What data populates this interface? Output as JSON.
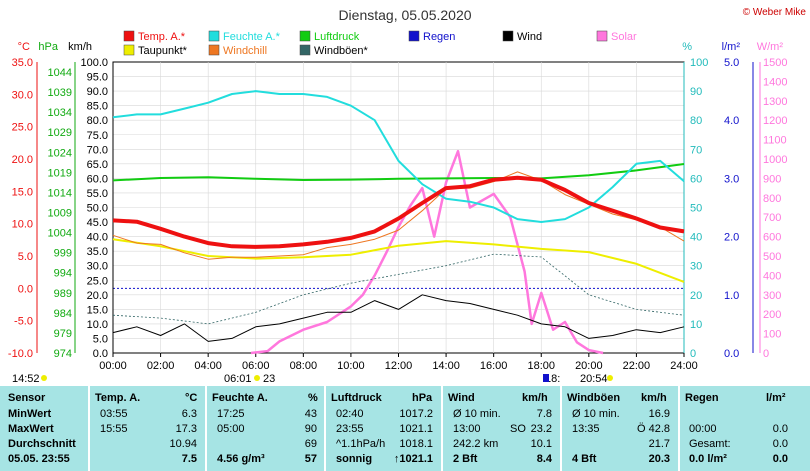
{
  "title": "Dienstag, 05.05.2020",
  "brand": "© Weber Mike",
  "legend": [
    {
      "label": "Temp. A.*",
      "color": "#ee1111"
    },
    {
      "label": "Feuchte A.*",
      "color": "#22dddd"
    },
    {
      "label": "Luftdruck",
      "color": "#11cc11"
    },
    {
      "label": "Regen",
      "color": "#1111cc"
    },
    {
      "label": "Wind",
      "color": "#000000"
    },
    {
      "label": "Solar",
      "color": "#ff77dd"
    },
    {
      "label": "Taupunkt*",
      "color": "#eeee00"
    },
    {
      "label": "Windchill",
      "color": "#ee7722"
    },
    {
      "label": "Windböen*",
      "color": "#336666"
    }
  ],
  "axis_units": {
    "temp": "°C",
    "pressure": "hPa",
    "wind": "km/h",
    "humidity": "%",
    "rain": "l/m²",
    "solar": "W/m²"
  },
  "chart_data": {
    "type": "line",
    "x_ticks": [
      "00:00",
      "02:00",
      "04:00",
      "06:00",
      "08:00",
      "10:00",
      "12:00",
      "14:00",
      "16:00",
      "18:00",
      "20:00",
      "22:00",
      "24:00"
    ],
    "x_range_hours": [
      0,
      24
    ],
    "axes": {
      "temp_c": {
        "range": [
          -10,
          35
        ],
        "ticks": [
          "35.0",
          "30.0",
          "25.0",
          "20.0",
          "15.0",
          "10.0",
          "5.0",
          "0.0",
          "-5.0",
          "-10.0"
        ]
      },
      "pressure_hpa": {
        "range": [
          974,
          1046.5
        ],
        "ticks": [
          "1044",
          "1039",
          "1034",
          "1029",
          "1024",
          "1019",
          "1014",
          "1009",
          "1004",
          "999",
          "994",
          "989",
          "984",
          "979",
          "974"
        ]
      },
      "wind_kmh": {
        "range": [
          0,
          100
        ],
        "ticks": [
          "100.0",
          "95.0",
          "90.0",
          "85.0",
          "80.0",
          "75.0",
          "70.0",
          "65.0",
          "60.0",
          "55.0",
          "50.0",
          "45.0",
          "40.0",
          "35.0",
          "30.0",
          "25.0",
          "20.0",
          "15.0",
          "10.0",
          "5.0",
          "0.0"
        ]
      },
      "humidity_pct": {
        "range": [
          0,
          100
        ],
        "ticks": [
          "100",
          "90",
          "80",
          "70",
          "60",
          "50",
          "40",
          "30",
          "20",
          "10",
          "0"
        ]
      },
      "rain_lm2": {
        "range": [
          0,
          5
        ],
        "ticks": [
          "5.0",
          "4.0",
          "3.0",
          "2.0",
          "1.0",
          "0.0"
        ]
      },
      "solar_wm2": {
        "range": [
          0,
          1500
        ],
        "ticks": [
          "1500",
          "1400",
          "1300",
          "1200",
          "1100",
          "1000",
          "900",
          "800",
          "700",
          "600",
          "500",
          "400",
          "300",
          "200",
          "100",
          "0"
        ]
      }
    },
    "series": [
      {
        "name": "Temp. A.*",
        "axis": "temp_c",
        "x": [
          0,
          1,
          2,
          3,
          4,
          5,
          6,
          7,
          8,
          9,
          10,
          11,
          12,
          13,
          14,
          15,
          16,
          17,
          18,
          19,
          20,
          21,
          22,
          23,
          24
        ],
        "values": [
          10.5,
          10.3,
          9.2,
          8.0,
          7.0,
          6.5,
          6.4,
          6.5,
          6.8,
          7.2,
          7.8,
          8.8,
          10.8,
          13.2,
          15.5,
          15.8,
          16.8,
          17.1,
          16.8,
          15.2,
          13.2,
          12.0,
          10.8,
          9.4,
          8.8
        ]
      },
      {
        "name": "Feuchte A.*",
        "axis": "humidity_pct",
        "x": [
          0,
          1,
          2,
          3,
          4,
          5,
          6,
          7,
          8,
          9,
          10,
          11,
          12,
          13,
          14,
          15,
          16,
          17,
          18,
          19,
          20,
          21,
          22,
          23,
          24
        ],
        "values": [
          81,
          82,
          82,
          84,
          86,
          89,
          90,
          89,
          89,
          88,
          85,
          80,
          66,
          58,
          53,
          52,
          50,
          46,
          45,
          46,
          50,
          57,
          65,
          66,
          59
        ]
      },
      {
        "name": "Luftdruck",
        "axis": "pressure_hpa",
        "x": [
          0,
          2,
          4,
          6,
          8,
          10,
          12,
          14,
          16,
          18,
          20,
          22,
          24
        ],
        "values": [
          1017.0,
          1017.6,
          1017.8,
          1017.4,
          1017.1,
          1017.2,
          1017.4,
          1017.5,
          1017.6,
          1017.5,
          1018.3,
          1019.5,
          1021.1
        ]
      },
      {
        "name": "Wind",
        "axis": "wind_kmh",
        "x": [
          0,
          1,
          2,
          3,
          4,
          5,
          6,
          7,
          8,
          9,
          10,
          11,
          12,
          13,
          14,
          15,
          16,
          17,
          18,
          19,
          20,
          21,
          22,
          23,
          24
        ],
        "values": [
          7,
          9,
          6,
          10,
          4,
          5,
          9,
          10,
          12,
          14,
          14,
          18,
          15,
          20,
          18,
          17,
          15,
          13,
          10,
          9,
          5,
          6,
          8,
          7,
          9
        ]
      },
      {
        "name": "Windböen*",
        "axis": "wind_kmh",
        "x": [
          0,
          2,
          4,
          6,
          8,
          10,
          12,
          14,
          16,
          18,
          20,
          22,
          24
        ],
        "values": [
          13,
          12,
          10,
          14,
          20,
          24,
          27,
          30,
          34,
          33,
          20,
          15,
          13
        ]
      },
      {
        "name": "Taupunkt*",
        "axis": "temp_c",
        "x": [
          0,
          2,
          4,
          6,
          8,
          10,
          12,
          14,
          16,
          18,
          20,
          22,
          24
        ],
        "values": [
          7.6,
          6.5,
          5.0,
          4.6,
          4.8,
          5.2,
          6.6,
          7.3,
          6.8,
          6.1,
          5.6,
          3.8,
          1.0
        ]
      },
      {
        "name": "Windchill",
        "axis": "temp_c",
        "x": [
          0,
          1,
          2,
          3,
          4,
          5,
          6,
          7,
          8,
          9,
          10,
          11,
          12,
          13,
          14,
          15,
          16,
          17,
          18,
          19,
          20,
          21,
          22,
          23,
          24
        ],
        "values": [
          8.2,
          7.0,
          6.8,
          5.5,
          4.5,
          4.8,
          4.8,
          5.0,
          5.2,
          6.3,
          6.8,
          7.6,
          9.0,
          12.0,
          15.4,
          15.5,
          16.5,
          18.0,
          16.7,
          14.5,
          13.0,
          11.5,
          10.6,
          9.5,
          7.3
        ]
      },
      {
        "name": "Solar",
        "axis": "solar_wm2",
        "x": [
          5.8,
          6.5,
          7,
          8,
          9,
          10,
          10.5,
          11,
          11.5,
          12,
          12.5,
          13,
          13.5,
          14,
          14.5,
          15,
          16,
          16.7,
          17.3,
          17.6,
          18,
          18.5,
          19,
          19.5,
          20,
          20.6
        ],
        "values": [
          0,
          10,
          60,
          120,
          160,
          240,
          300,
          400,
          520,
          650,
          760,
          850,
          600,
          880,
          1040,
          750,
          820,
          700,
          420,
          150,
          310,
          120,
          160,
          55,
          15,
          0
        ]
      }
    ]
  },
  "markers": {
    "sunrise_time": "06:01",
    "sunset_time": "20:54",
    "moonrise_time": "18:",
    "moon_extra": "23",
    "left_time": "14:52"
  },
  "table": {
    "headers": {
      "sensor": "Sensor",
      "temp": "Temp. A.",
      "temp_unit": "°C",
      "hum": "Feuchte A.",
      "hum_unit": "%",
      "pressure": "Luftdruck",
      "pressure_unit": "hPa",
      "wind": "Wind",
      "wind_unit": "km/h",
      "gust": "Windböen",
      "gust_unit": "km/h",
      "rain": "Regen",
      "rain_unit": "l/m²"
    },
    "rows": [
      {
        "label": "MinWert",
        "temp_time": "03:55",
        "temp_val": "6.3",
        "hum_time": "17:25",
        "hum_val": "43",
        "press_time": "02:40",
        "press_val": "1017.2",
        "wind_a": "Ø 10 min.",
        "wind_b": "",
        "wind_val": "7.8",
        "gust_a": "Ø 10 min.",
        "gust_val": "16.9",
        "rain_a": "",
        "rain_val": ""
      },
      {
        "label": "MaxWert",
        "temp_time": "15:55",
        "temp_val": "17.3",
        "hum_time": "05:00",
        "hum_val": "90",
        "press_time": "23:55",
        "press_val": "1021.1",
        "wind_a": "13:00",
        "wind_b": "SO",
        "wind_val": "23.2",
        "gust_a": "13:35",
        "gust_val": "Ö 42.8",
        "rain_a": "00:00",
        "rain_val": "0.0"
      },
      {
        "label": "Durchschnitt",
        "temp_time": "",
        "temp_val": "10.94",
        "hum_time": "",
        "hum_val": "69",
        "press_time": "^1.1hPa/h",
        "press_val": "1018.1",
        "wind_a": "242.2 km",
        "wind_b": "",
        "wind_val": "10.1",
        "gust_a": "",
        "gust_val": "21.7",
        "rain_a": "Gesamt:",
        "rain_val": "0.0"
      },
      {
        "label": "05.05. 23:55",
        "temp_time": "",
        "temp_val": "7.5",
        "hum_time": "4.56 g/m³",
        "hum_val": "57",
        "press_time": "sonnig",
        "press_val": "↑1021.1",
        "wind_a": "2 Bft",
        "wind_b": "",
        "wind_val": "8.4",
        "gust_a": "4 Bft",
        "gust_val": "20.3",
        "rain_a": "0.0 l/m²",
        "rain_val": "0.0"
      }
    ]
  }
}
